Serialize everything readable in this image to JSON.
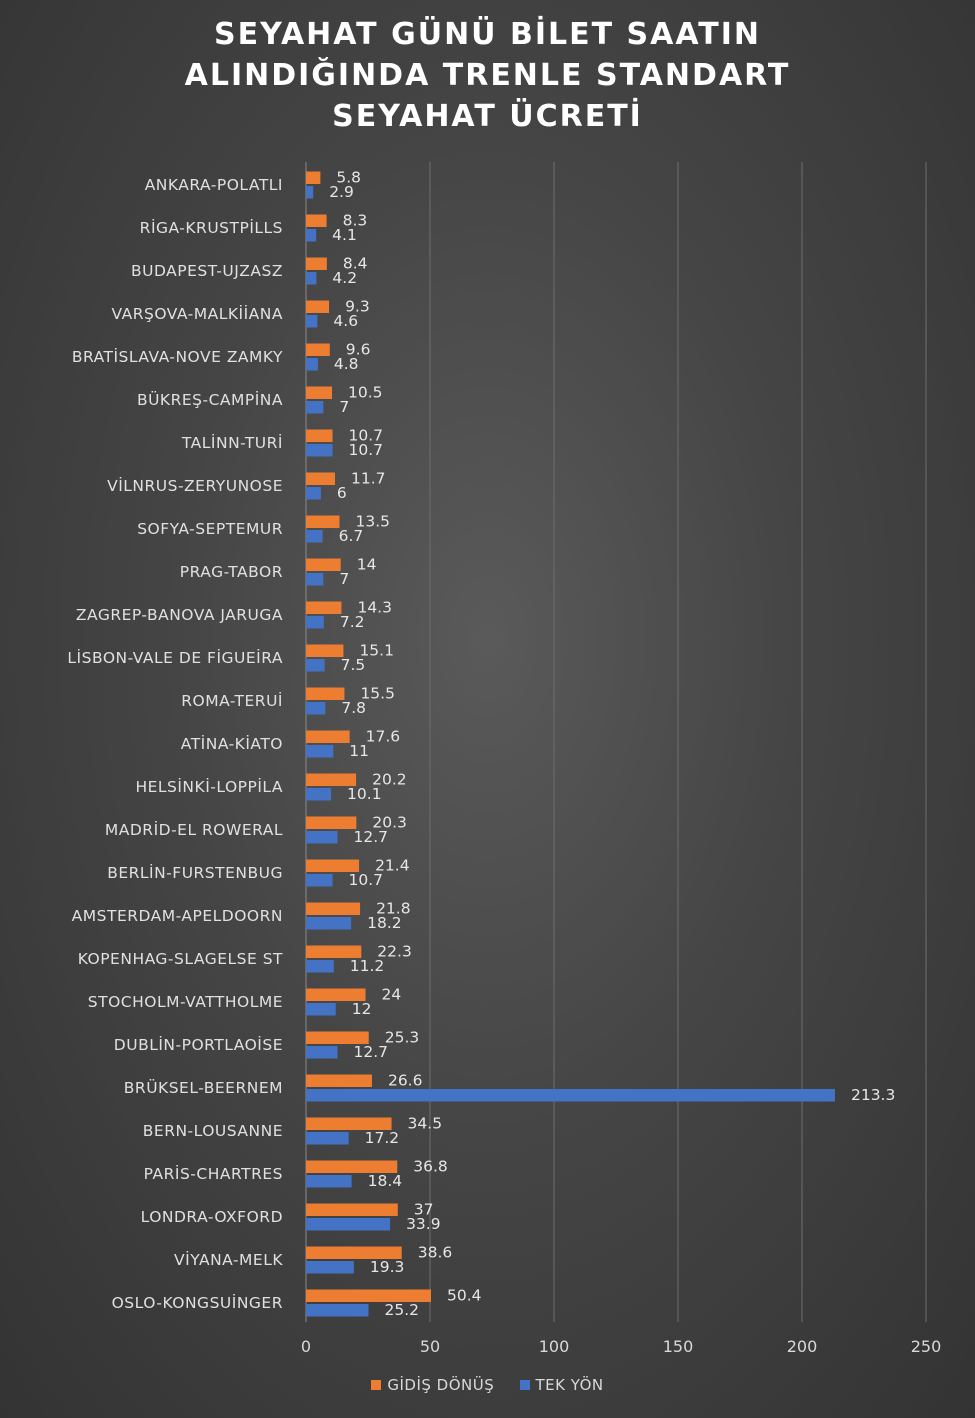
{
  "chart_data": {
    "type": "bar",
    "orientation": "horizontal",
    "title": "SEYAHAT GÜNÜ BİLET SAATIN ALINDIĞINDA TRENLE STANDART SEYAHAT ÜCRETİ",
    "categories": [
      "ANKARA-POLATLI",
      "RİGA-KRUSTPİLLS",
      "BUDAPEST-UJZASZ",
      "VARŞOVA-MALKİİANA",
      "BRATİSLAVA-NOVE ZAMKY",
      "BÜKREŞ-CAMPİNA",
      "TALİNN-TURİ",
      "VİLNRUS-ZERYUNOSE",
      "SOFYA-SEPTEMUR",
      "PRAG-TABOR",
      "ZAGREP-BANOVA JARUGA",
      "LİSBON-VALE DE FİGUEİRA",
      "ROMA-TERUİ",
      "ATİNA-KİATO",
      "HELSİNKİ-LOPPİLA",
      "MADRİD-EL ROWERAL",
      "BERLİN-FURSTENBUG",
      "AMSTERDAM-APELDOORN",
      "KOPENHAG-SLAGELSE ST",
      "STOCHOLM-VATTHOLME",
      "DUBLİN-PORTLAOİSE",
      "BRÜKSEL-BEERNEM",
      "BERN-LOUSANNE",
      "PARİS-CHARTRES",
      "LONDRA-OXFORD",
      "VİYANA-MELK",
      "OSLO-KONGSUİNGER"
    ],
    "series": [
      {
        "name": "GİDİŞ DÖNÜŞ",
        "color": "#ed7d31",
        "values": [
          5.8,
          8.3,
          8.4,
          9.3,
          9.6,
          10.5,
          10.7,
          11.7,
          13.5,
          14,
          14.3,
          15.1,
          15.5,
          17.6,
          20.2,
          20.3,
          21.4,
          21.8,
          22.3,
          24,
          25.3,
          26.6,
          34.5,
          36.8,
          37,
          38.6,
          50.4
        ],
        "labels": [
          "5.8",
          "8.3",
          "8.4",
          "9.3",
          "9.6",
          "10.5",
          "10.7",
          "11.7",
          "13.5",
          "14",
          "14.3",
          "15.1",
          "15.5",
          "17.6",
          "20.2",
          "20.3",
          "21.4",
          "21.8",
          "22.3",
          "24",
          "25.3",
          "26.6",
          "34.5",
          "36.8",
          "37",
          "38.6",
          "50.4"
        ]
      },
      {
        "name": "TEK YÖN",
        "color": "#4472c4",
        "values": [
          2.9,
          4.1,
          4.2,
          4.6,
          4.8,
          7,
          10.7,
          6,
          6.7,
          7,
          7.2,
          7.5,
          7.8,
          11,
          10.1,
          12.7,
          10.7,
          18.2,
          11.2,
          12,
          12.7,
          213.3,
          17.2,
          18.4,
          33.9,
          19.3,
          25.2
        ],
        "labels": [
          "2.9",
          "4.1",
          "4.2",
          "4.6",
          "4.8",
          "7",
          "10.7",
          "6",
          "6.7",
          "7",
          "7.2",
          "7.5",
          "7.8",
          "11",
          "10.1",
          "12.7",
          "10.7",
          "18.2",
          "11.2",
          "12",
          "12.7",
          "213.3",
          "17.2",
          "18.4",
          "33.9",
          "19.3",
          "25.2"
        ]
      }
    ],
    "xlim": [
      0,
      250
    ],
    "xticks": [
      "0",
      "50",
      "100",
      "150",
      "200",
      "250"
    ],
    "xlabel": "",
    "ylabel": "",
    "grid": true,
    "legend_position": "bottom"
  }
}
